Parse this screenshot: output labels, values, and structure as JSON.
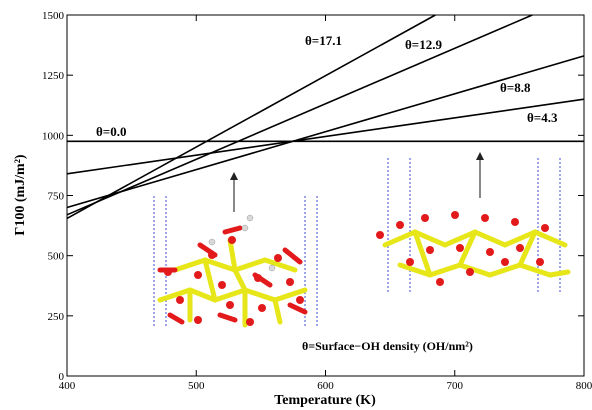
{
  "chart_data": {
    "type": "line",
    "xlabel": "Temperature (K)",
    "ylabel": "Γ100 (mJ/m²)",
    "xlim": [
      400,
      800
    ],
    "ylim": [
      0,
      1500
    ],
    "x_ticks": [
      400,
      500,
      600,
      700,
      800
    ],
    "y_ticks": [
      0,
      250,
      500,
      750,
      1000,
      1250,
      1500
    ],
    "x_tick_labels": [
      "400",
      "500",
      "600",
      "700",
      "800"
    ],
    "y_tick_labels": [
      "0",
      "250",
      "500",
      "750",
      "1000",
      "1250",
      "1500"
    ],
    "grid": false,
    "series": [
      {
        "name": "θ=0.0",
        "x": [
          400,
          800
        ],
        "y": [
          975,
          975
        ]
      },
      {
        "name": "θ=4.3",
        "x": [
          400,
          800
        ],
        "y": [
          840,
          1150
        ]
      },
      {
        "name": "θ=8.8",
        "x": [
          400,
          800
        ],
        "y": [
          700,
          1330
        ]
      },
      {
        "name": "θ=12.9",
        "x": [
          400,
          760
        ],
        "y": [
          670,
          1500
        ]
      },
      {
        "name": "θ=17.1",
        "x": [
          400,
          685
        ],
        "y": [
          655,
          1500
        ]
      }
    ],
    "annotation": "θ=Surface−OH density (OH/nm²)"
  },
  "colors": {
    "line": "#000000",
    "oxygen": "#e31a1c",
    "silicon": "#e6e619",
    "hydrogen": "#d9d9d9",
    "boundary": "#3a4bd8"
  }
}
